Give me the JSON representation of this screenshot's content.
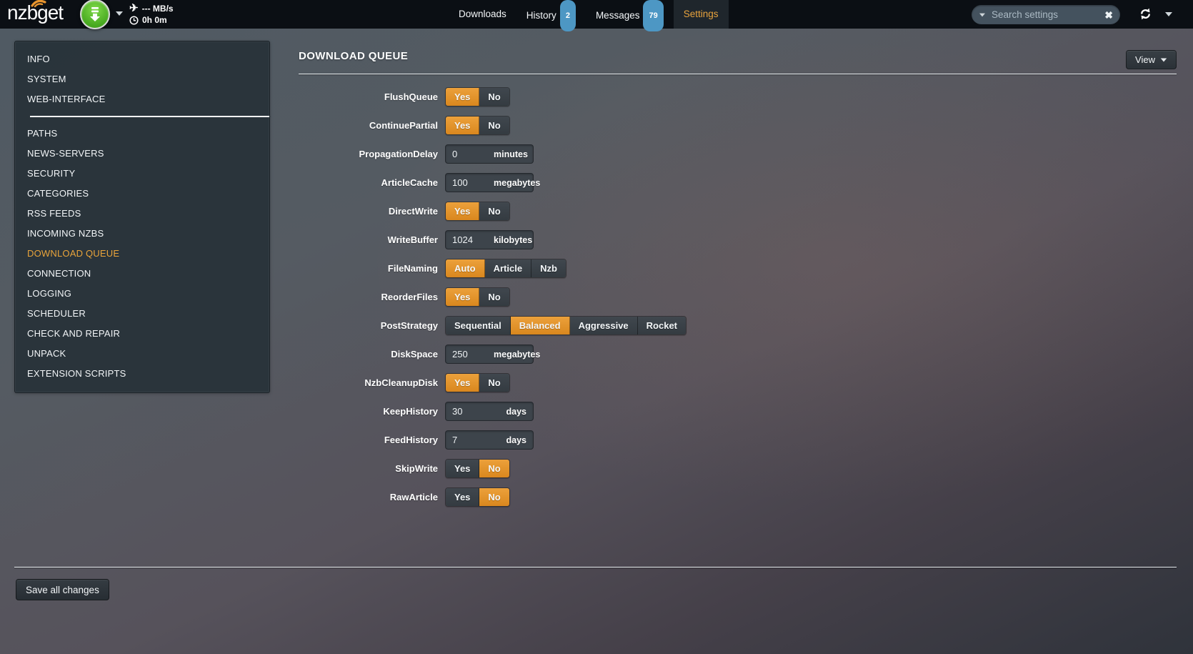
{
  "topbar": {
    "logo": "nzbget",
    "speed": "--- MB/s",
    "time_left": "0h 0m",
    "nav": [
      {
        "label": "Downloads",
        "badge": null,
        "active": false
      },
      {
        "label": "History",
        "badge": "2",
        "active": false
      },
      {
        "label": "Messages",
        "badge": "79",
        "active": false
      },
      {
        "label": "Settings",
        "badge": null,
        "active": true
      }
    ],
    "search_placeholder": "Search settings"
  },
  "sidebar": {
    "items": [
      {
        "label": "INFO"
      },
      {
        "label": "SYSTEM"
      },
      {
        "label": "WEB-INTERFACE",
        "divider_after": true
      },
      {
        "label": "PATHS"
      },
      {
        "label": "NEWS-SERVERS"
      },
      {
        "label": "SECURITY"
      },
      {
        "label": "CATEGORIES"
      },
      {
        "label": "RSS FEEDS"
      },
      {
        "label": "INCOMING NZBS"
      },
      {
        "label": "DOWNLOAD QUEUE",
        "active": true
      },
      {
        "label": "CONNECTION"
      },
      {
        "label": "LOGGING"
      },
      {
        "label": "SCHEDULER"
      },
      {
        "label": "CHECK AND REPAIR"
      },
      {
        "label": "UNPACK"
      },
      {
        "label": "EXTENSION SCRIPTS"
      }
    ]
  },
  "main": {
    "title": "DOWNLOAD QUEUE",
    "view_button": "View",
    "rows": [
      {
        "label": "FlushQueue",
        "type": "toggle",
        "options": [
          "Yes",
          "No"
        ],
        "selected": "Yes"
      },
      {
        "label": "ContinuePartial",
        "type": "toggle",
        "options": [
          "Yes",
          "No"
        ],
        "selected": "Yes"
      },
      {
        "label": "PropagationDelay",
        "type": "input",
        "value": "0",
        "unit": "minutes"
      },
      {
        "label": "ArticleCache",
        "type": "input",
        "value": "100",
        "unit": "megabytes"
      },
      {
        "label": "DirectWrite",
        "type": "toggle",
        "options": [
          "Yes",
          "No"
        ],
        "selected": "Yes"
      },
      {
        "label": "WriteBuffer",
        "type": "input",
        "value": "1024",
        "unit": "kilobytes"
      },
      {
        "label": "FileNaming",
        "type": "toggle",
        "options": [
          "Auto",
          "Article",
          "Nzb"
        ],
        "selected": "Auto"
      },
      {
        "label": "ReorderFiles",
        "type": "toggle",
        "options": [
          "Yes",
          "No"
        ],
        "selected": "Yes"
      },
      {
        "label": "PostStrategy",
        "type": "toggle",
        "options": [
          "Sequential",
          "Balanced",
          "Aggressive",
          "Rocket"
        ],
        "selected": "Balanced"
      },
      {
        "label": "DiskSpace",
        "type": "input",
        "value": "250",
        "unit": "megabytes"
      },
      {
        "label": "NzbCleanupDisk",
        "type": "toggle",
        "options": [
          "Yes",
          "No"
        ],
        "selected": "Yes"
      },
      {
        "label": "KeepHistory",
        "type": "input",
        "value": "30",
        "unit": "days"
      },
      {
        "label": "FeedHistory",
        "type": "input",
        "value": "7",
        "unit": "days"
      },
      {
        "label": "SkipWrite",
        "type": "toggle",
        "options": [
          "Yes",
          "No"
        ],
        "selected": "No"
      },
      {
        "label": "RawArticle",
        "type": "toggle",
        "options": [
          "Yes",
          "No"
        ],
        "selected": "No"
      }
    ],
    "save_button": "Save all changes"
  },
  "colors": {
    "accent_orange": "#e8a33d",
    "active_button_orange": "#e0922e",
    "badge_blue": "#4d97c4",
    "download_button_green": "#54b426",
    "topbar_background": "#0b0f14",
    "sidebar_background": "#273138"
  }
}
